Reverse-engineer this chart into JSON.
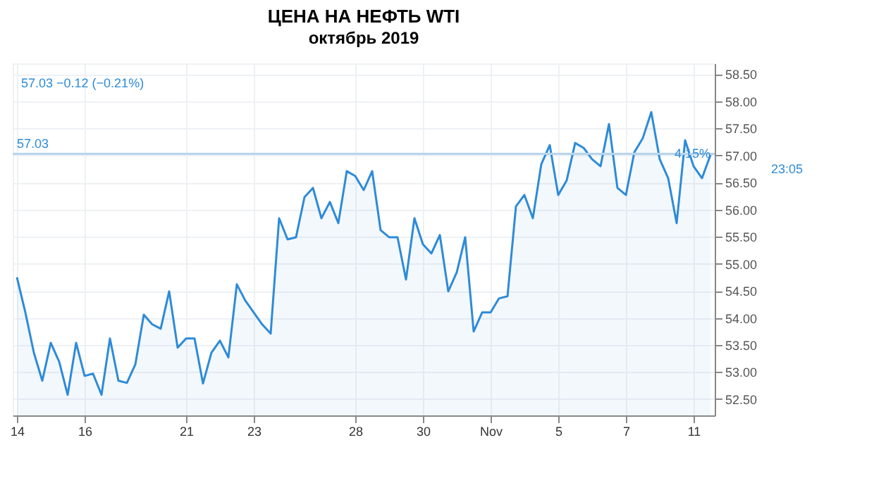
{
  "chart_data": {
    "type": "area",
    "title": "ЦЕНА НА НЕФТЬ WTI",
    "subtitle": "октябрь 2019",
    "categories": [
      "14",
      null,
      null,
      null,
      null,
      null,
      null,
      null,
      "16",
      null,
      null,
      null,
      null,
      null,
      null,
      null,
      null,
      null,
      null,
      null,
      "21",
      null,
      null,
      null,
      null,
      null,
      null,
      null,
      "23",
      null,
      null,
      null,
      null,
      null,
      null,
      null,
      null,
      null,
      null,
      null,
      "28",
      null,
      null,
      null,
      null,
      null,
      null,
      null,
      "30",
      null,
      null,
      null,
      null,
      null,
      null,
      null,
      "Nov",
      null,
      null,
      null,
      null,
      null,
      null,
      null,
      "5",
      null,
      null,
      null,
      null,
      null,
      null,
      null,
      "7",
      null,
      null,
      null,
      null,
      null,
      null,
      null,
      "11",
      null,
      null
    ],
    "series": [
      {
        "color": "#2e8bd8",
        "values": [
          54.75,
          54.1,
          53.36,
          52.84,
          53.54,
          53.19,
          52.58,
          53.54,
          52.93,
          52.97,
          52.58,
          53.62,
          52.84,
          52.8,
          53.14,
          54.06,
          53.88,
          53.8,
          54.49,
          53.45,
          53.62,
          53.62,
          52.79,
          53.36,
          53.58,
          53.27,
          54.62,
          54.32,
          54.1,
          53.88,
          53.71,
          55.84,
          55.45,
          55.49,
          56.23,
          56.4,
          55.84,
          56.14,
          55.75,
          56.71,
          56.62,
          56.36,
          56.71,
          55.62,
          55.49,
          55.49,
          54.71,
          55.84,
          55.36,
          55.19,
          55.53,
          54.49,
          54.84,
          55.49,
          53.75,
          54.1,
          54.1,
          54.36,
          54.4,
          56.06,
          56.27,
          55.84,
          56.84,
          57.19,
          56.27,
          56.54,
          57.23,
          57.14,
          56.93,
          56.8,
          57.58,
          56.4,
          56.27,
          57.06,
          57.32,
          57.8,
          56.93,
          56.58,
          55.75,
          57.28,
          56.8,
          56.58,
          57.01
        ]
      }
    ],
    "ylim": [
      52.2,
      58.7
    ],
    "yticks": [
      {
        "value": 52.5,
        "label": "52.50"
      },
      {
        "value": 53,
        "label": "53.00"
      },
      {
        "value": 53.5,
        "label": "53.50"
      },
      {
        "value": 54,
        "label": "54.00"
      },
      {
        "value": 54.5,
        "label": "54.50"
      },
      {
        "value": 55,
        "label": "55.00"
      },
      {
        "value": 55.5,
        "label": "55.50"
      },
      {
        "value": 56,
        "label": "56.00"
      },
      {
        "value": 56.5,
        "label": "56.50"
      },
      {
        "value": 57,
        "label": "57.00"
      },
      {
        "value": 57.5,
        "label": "57.50"
      },
      {
        "value": 58,
        "label": "58.00"
      },
      {
        "value": 58.5,
        "label": "58.50"
      }
    ],
    "grid": true,
    "ref_lines": [
      {
        "axis": "y",
        "value": 57.03,
        "label": "57.03",
        "color": "#b8d4ec"
      }
    ],
    "annotations": [
      "57.03 −0.12 (−0.21%)",
      "4.15%",
      "23:05"
    ]
  }
}
